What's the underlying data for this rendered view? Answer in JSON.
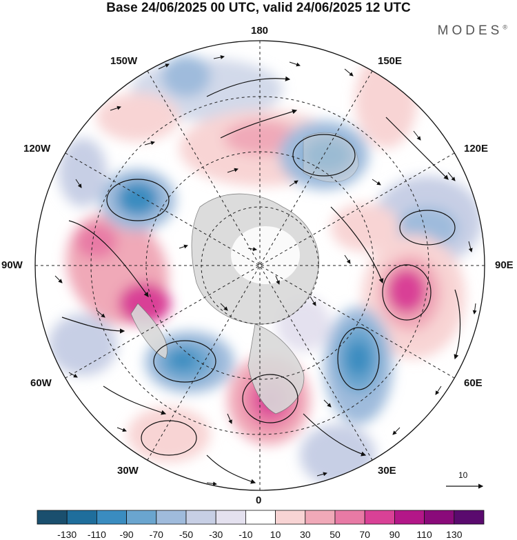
{
  "header": {
    "title": "Base 24/06/2025 00 UTC, valid 24/06/2025 12 UTC",
    "brand": "MODES",
    "brand_mark": "®"
  },
  "map": {
    "projection": "north-polar-stereographic",
    "longitude_labels": {
      "top": "180",
      "bottom": "0",
      "left": "90W",
      "right": "90E",
      "upper_left_1": "150W",
      "upper_left_2": "120W",
      "lower_left_1": "60W",
      "lower_left_2": "30W",
      "upper_right_1": "150E",
      "upper_right_2": "120E",
      "lower_right_1": "60E",
      "lower_right_2": "30E"
    },
    "vector_scale_label": "10"
  },
  "colorbar": {
    "labels": [
      "-130",
      "-110",
      "-90",
      "-70",
      "-50",
      "-30",
      "-10",
      "10",
      "30",
      "50",
      "70",
      "90",
      "110",
      "130"
    ],
    "colors": [
      "#1a4f6e",
      "#1f6e9c",
      "#3a8cc0",
      "#6aa5cf",
      "#9fbbdc",
      "#c7cfe5",
      "#e4e1ef",
      "#ffffff",
      "#f8d4d4",
      "#f0a9b8",
      "#e87aa5",
      "#d94196",
      "#b31788",
      "#8a0a7a",
      "#5a0a6e"
    ]
  }
}
